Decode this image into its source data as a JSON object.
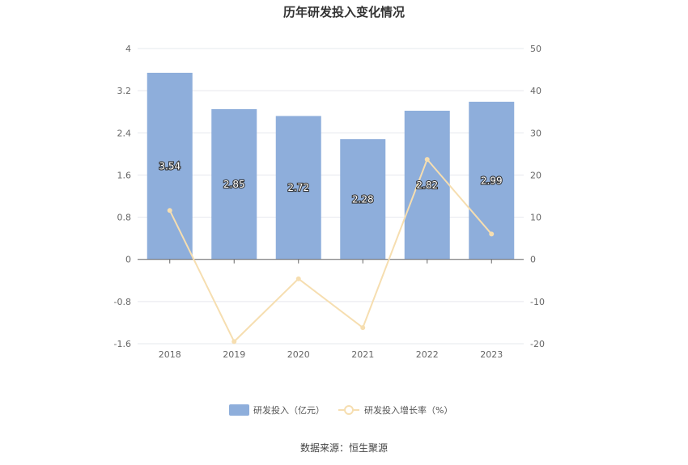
{
  "chart_data": {
    "type": "bar",
    "title": "历年研发投入变化情况",
    "categories": [
      "2018",
      "2019",
      "2020",
      "2021",
      "2022",
      "2023"
    ],
    "series": [
      {
        "name": "研发投入（亿元）",
        "type": "bar",
        "axis": "left",
        "color": "#8eaedb",
        "values": [
          3.54,
          2.85,
          2.72,
          2.28,
          2.82,
          2.99
        ],
        "labels": [
          "3.54",
          "2.85",
          "2.72",
          "2.28",
          "2.82",
          "2.99"
        ]
      },
      {
        "name": "研发投入增长率（%）",
        "type": "line",
        "axis": "right",
        "color": "#f6deb0",
        "values": [
          11.6,
          -19.5,
          -4.6,
          -16.2,
          23.7,
          6.0
        ]
      }
    ],
    "y_left": {
      "min": -1.6,
      "max": 4,
      "ticks": [
        "4",
        "3.2",
        "2.4",
        "1.6",
        "0.8",
        "0",
        "-0.8",
        "-1.6"
      ]
    },
    "y_right": {
      "min": -20,
      "max": 50,
      "ticks": [
        "50",
        "40",
        "30",
        "20",
        "10",
        "0",
        "-10",
        "-20"
      ]
    },
    "grid": true,
    "legend": "bottom-center"
  },
  "footer": {
    "source": "数据来源：恒生聚源"
  }
}
